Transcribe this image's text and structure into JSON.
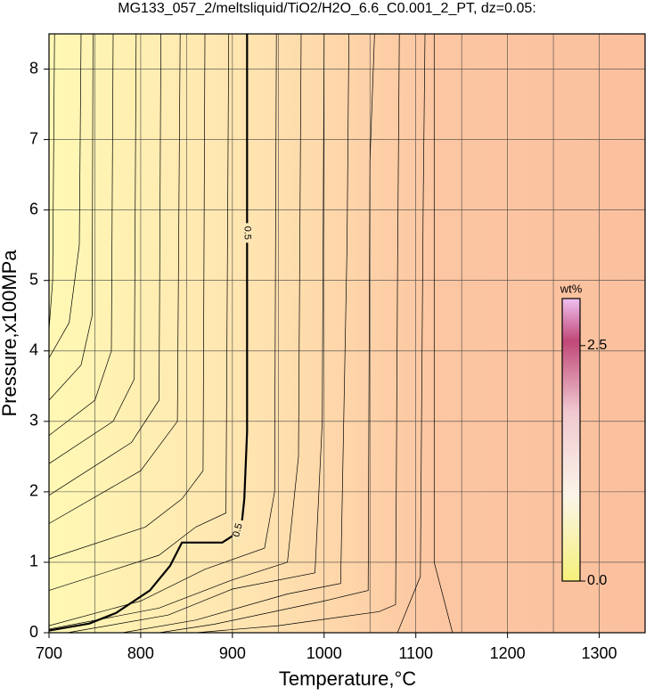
{
  "chart_data": {
    "type": "contour",
    "title": "MG133_057_2/meltsliquid/TiO2/H2O_6.6_C0.001_2_PT, dz=0.05:",
    "x_label": "Temperature,°C",
    "y_label": "Pressure,x100MPa",
    "xlim": [
      700,
      1350
    ],
    "ylim": [
      0,
      8.5
    ],
    "xticks": [
      700,
      800,
      900,
      1000,
      1100,
      1200,
      1300
    ],
    "yticks": [
      0,
      1,
      2,
      3,
      4,
      5,
      6,
      7,
      8
    ],
    "grid": true,
    "contours": [
      {
        "level": 0.5,
        "bold": true,
        "x": [
          700,
          744,
          773,
          810,
          832,
          845,
          889,
          902,
          910,
          913,
          916,
          916
        ],
        "y": [
          0.03,
          0.13,
          0.28,
          0.6,
          0.95,
          1.28,
          1.28,
          1.39,
          1.52,
          1.9,
          2.85,
          8.5
        ]
      },
      {
        "x": [
          706,
          704,
          700
        ],
        "y": [
          8.5,
          5,
          4.3
        ]
      },
      {
        "x": [
          735,
          733,
          722,
          700
        ],
        "y": [
          8.5,
          5.5,
          4.4,
          3.9
        ]
      },
      {
        "x": [
          748,
          747,
          735,
          700
        ],
        "y": [
          8.5,
          4.5,
          3.8,
          3.3
        ]
      },
      {
        "x": [
          770,
          768,
          750,
          700
        ],
        "y": [
          8.5,
          4,
          3.3,
          2.8
        ]
      },
      {
        "x": [
          795,
          793,
          770,
          700
        ],
        "y": [
          8.5,
          3.6,
          3.0,
          2.4
        ]
      },
      {
        "x": [
          822,
          820,
          790,
          700
        ],
        "y": [
          8.5,
          3.3,
          2.7,
          1.95
        ]
      },
      {
        "x": [
          843,
          840,
          800,
          700
        ],
        "y": [
          8.5,
          3,
          2.3,
          1.55
        ]
      },
      {
        "x": [
          870,
          868,
          845,
          805,
          700
        ],
        "y": [
          8.5,
          2.3,
          1.9,
          1.5,
          1.05
        ]
      },
      {
        "x": [
          896,
          893,
          860,
          820,
          700
        ],
        "y": [
          8.5,
          1.7,
          1.5,
          1.1,
          0.6
        ]
      },
      {
        "x": [
          948,
          946,
          935,
          870,
          800,
          700
        ],
        "y": [
          8.5,
          2,
          1.2,
          0.9,
          0.45,
          0.1
        ]
      },
      {
        "x": [
          975,
          972,
          960,
          900,
          820,
          700
        ],
        "y": [
          8.5,
          2.5,
          1.0,
          0.75,
          0.35,
          0.05
        ]
      },
      {
        "x": [
          1000,
          998,
          990,
          900,
          830,
          720
        ],
        "y": [
          8.5,
          3,
          0.85,
          0.62,
          0.25,
          0
        ]
      },
      {
        "x": [
          1027,
          1025,
          1018,
          960,
          860,
          780
        ],
        "y": [
          8.5,
          5.5,
          0.7,
          0.55,
          0.18,
          0
        ]
      },
      {
        "x": [
          1055,
          1050,
          1048,
          1000,
          880,
          820
        ],
        "y": [
          8.5,
          6.7,
          0.6,
          0.45,
          0.12,
          0
        ]
      },
      {
        "x": [
          1082,
          1080,
          1078,
          1060,
          950,
          860
        ],
        "y": [
          8.5,
          5,
          0.4,
          0.3,
          0.1,
          0
        ]
      },
      {
        "x": [
          1110,
          1108,
          1105,
          1080
        ],
        "y": [
          8.5,
          6,
          0.8,
          0
        ]
      },
      {
        "x": [
          1120,
          1120,
          1140
        ],
        "y": [
          8.5,
          1.0,
          0
        ]
      }
    ],
    "colorbar": {
      "label": "wt%",
      "clim": [
        0,
        3
      ],
      "ticks": [
        {
          "value": 0,
          "label": "0.0"
        },
        {
          "value": 2.5,
          "label": "2.5"
        }
      ]
    }
  }
}
